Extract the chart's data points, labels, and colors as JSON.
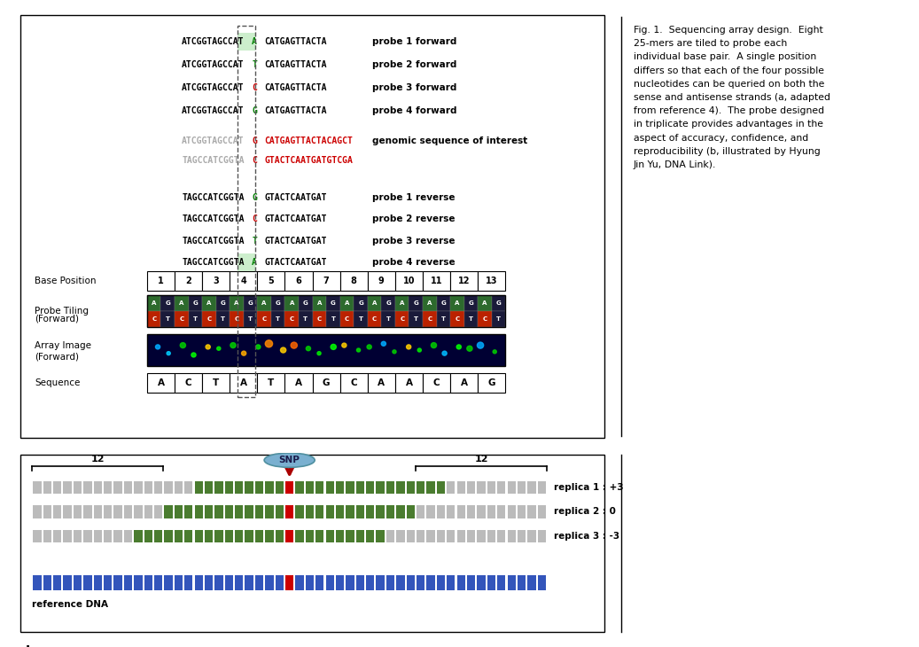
{
  "fig_width": 10.37,
  "fig_height": 7.3,
  "bg_color": "#ffffff",
  "panel_a": {
    "sequences_forward": [
      {
        "left": "ATCGGTAGCCAT",
        "mid": "A",
        "right": "CATGAGTTACTA",
        "label": "probe 1 forward",
        "mid_color": "#008000",
        "mid_bg": true
      },
      {
        "left": "ATCGGTAGCCAT",
        "mid": "T",
        "right": "CATGAGTTACTA",
        "label": "probe 2 forward",
        "mid_color": "#008000",
        "mid_bg": false
      },
      {
        "left": "ATCGGTAGCCAT",
        "mid": "C",
        "right": "CATGAGTTACTA",
        "label": "probe 3 forward",
        "mid_color": "#cc0000",
        "mid_bg": false
      },
      {
        "left": "ATCGGTAGCCAT",
        "mid": "G",
        "right": "CATGAGTTACTA",
        "label": "probe 4 forward",
        "mid_color": "#008000",
        "mid_bg": false
      }
    ],
    "genomic_seq": [
      {
        "left": "ATCGGTAGCCAT",
        "mid": "G",
        "right": "CATGAGTTACTACAGCT",
        "label": "genomic sequence of interest",
        "left_color": "#aaaaaa",
        "mid_color": "#cc0000",
        "right_color": "#cc0000"
      },
      {
        "left": "TAGCCATCGGTA",
        "mid": "C",
        "right": "GTACTCAATGATGTCGA",
        "label": "",
        "left_color": "#aaaaaa",
        "mid_color": "#cc0000",
        "right_color": "#cc0000"
      }
    ],
    "sequences_reverse": [
      {
        "left": "TAGCCATCGGTA",
        "mid": "G",
        "right": "GTACTCAATGAT",
        "label": "probe 1 reverse",
        "mid_color": "#008000",
        "mid_bg": false
      },
      {
        "left": "TAGCCATCGGTA",
        "mid": "C",
        "right": "GTACTCAATGAT",
        "label": "probe 2 reverse",
        "mid_color": "#cc0000",
        "mid_bg": false
      },
      {
        "left": "TAGCCATCGGTA",
        "mid": "T",
        "right": "GTACTCAATGAT",
        "label": "probe 3 reverse",
        "mid_color": "#008000",
        "mid_bg": false
      },
      {
        "left": "TAGCCATCGGTA",
        "mid": "A",
        "right": "GTACTCAATGAT",
        "label": "probe 4 reverse",
        "mid_color": "#008000",
        "mid_bg": true
      }
    ],
    "sequence_row": [
      "A",
      "C",
      "T",
      "A",
      "T",
      "A",
      "G",
      "C",
      "A",
      "A",
      "C",
      "A",
      "G"
    ]
  },
  "panel_b": {
    "snp_label": "SNP",
    "replica_labels": [
      "replica 1 : +3",
      "replica 2 : 0",
      "replica 3 : -3"
    ],
    "ref_label": "reference DNA",
    "gray_color": "#bbbbbb",
    "green_color": "#4a7c2f",
    "red_color": "#cc0000",
    "blue_color": "#3355bb",
    "snp_ellipse_color": "#7ab0d0"
  }
}
